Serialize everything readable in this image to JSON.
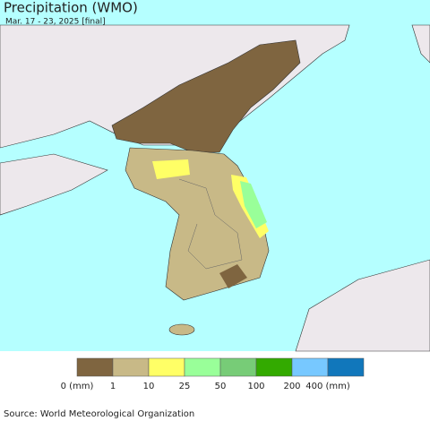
{
  "header": {
    "title": "Precipitation (WMO)",
    "subtitle": "Mar. 17 - 23, 2025 [final]"
  },
  "legend": {
    "colors": [
      "#7f6540",
      "#c8b987",
      "#ffff66",
      "#99ff99",
      "#77cc77",
      "#33aa00",
      "#77c8ff",
      "#1177bb"
    ],
    "labels": [
      "0 (mm)",
      "1",
      "10",
      "25",
      "50",
      "100",
      "200",
      "400 (mm)"
    ]
  },
  "source": "Source: World Meteorological Organization"
}
